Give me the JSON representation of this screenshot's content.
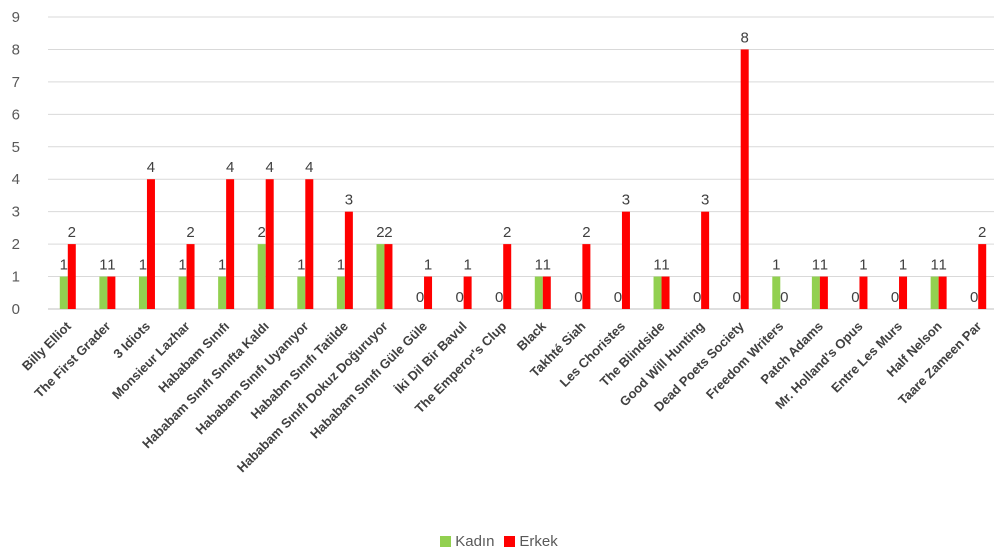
{
  "chart_data": {
    "type": "bar",
    "title": "",
    "xlabel": "",
    "ylabel": "",
    "ylim": [
      0,
      9
    ],
    "yticks": [
      0,
      1,
      2,
      3,
      4,
      5,
      6,
      7,
      8,
      9
    ],
    "grid": true,
    "legend_position": "bottom",
    "categories": [
      "Billy Elliot",
      "The First Grader",
      "3 Idiots",
      "Monsieur Lazhar",
      "Hababam Sınıfı",
      "Hababam Sınıfı Sınıfta Kaldı",
      "Hababam Sınıfı Uyanıyor",
      "Hababm Sınıfı Tatilde",
      "Hababam Sınıfı Dokuz Doğuruyor",
      "Hababam Sınıfı Güle Güle",
      "İki Dil Bir Bavul",
      "The Emperor's Clup",
      "Black",
      "Takhté Siah",
      "Les Choristes",
      "The Blindside",
      "Good Will Hunting",
      "Dead Poets Society",
      "Freedom Writers",
      "Patch Adams",
      "Mr. Holland's Opus",
      "Entre Les Murs",
      "Half Nelson",
      "Taare Zameen Par"
    ],
    "series": [
      {
        "name": "Kadın",
        "color": "#92d050",
        "values": [
          1,
          1,
          1,
          1,
          1,
          2,
          1,
          1,
          2,
          0,
          0,
          0,
          1,
          0,
          0,
          1,
          0,
          0,
          1,
          1,
          0,
          0,
          1,
          0
        ]
      },
      {
        "name": "Erkek",
        "color": "#ff0000",
        "values": [
          2,
          1,
          4,
          2,
          4,
          4,
          4,
          3,
          2,
          1,
          1,
          2,
          1,
          2,
          3,
          1,
          3,
          8,
          0,
          1,
          1,
          1,
          1,
          2
        ]
      }
    ]
  },
  "legend": {
    "items": [
      {
        "label": "Kadın",
        "color": "#92d050"
      },
      {
        "label": "Erkek",
        "color": "#ff0000"
      }
    ]
  }
}
